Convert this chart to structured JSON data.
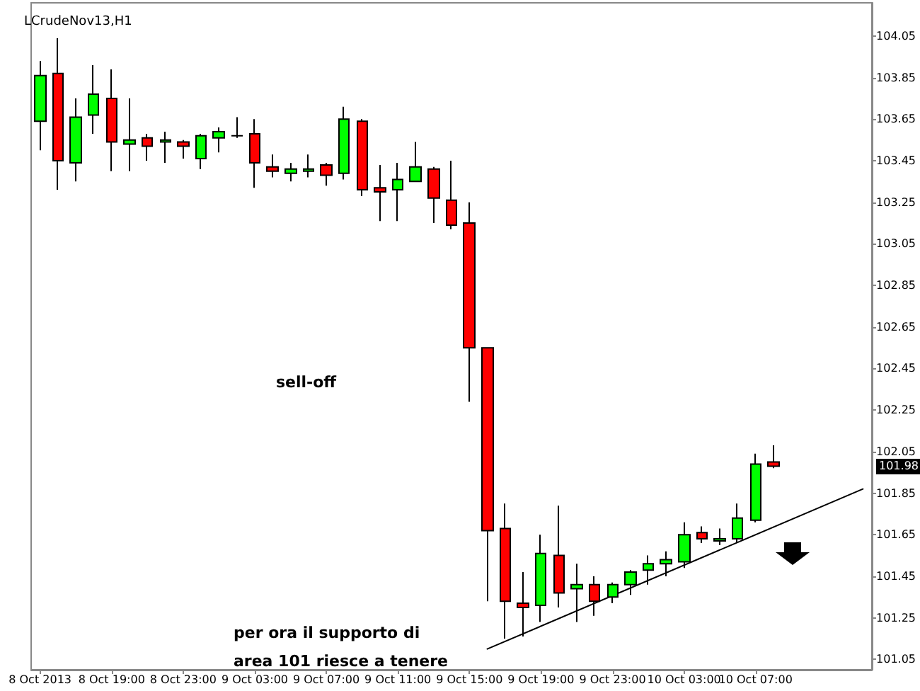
{
  "chart_data": {
    "type": "candlestick",
    "title": "LCrudeNov13,H1",
    "categories": [
      "8 Oct 2013",
      null,
      null,
      null,
      "8 Oct 19:00",
      null,
      null,
      null,
      "8 Oct 23:00",
      null,
      null,
      null,
      "9 Oct 03:00",
      null,
      null,
      null,
      "9 Oct 07:00",
      null,
      null,
      null,
      "9 Oct 11:00",
      null,
      null,
      null,
      "9 Oct 15:00",
      null,
      null,
      null,
      "9 Oct 19:00",
      null,
      null,
      null,
      "9 Oct 23:00",
      null,
      null,
      null,
      "10 Oct 03:00",
      null,
      null,
      null,
      "10 Oct 07:00",
      null,
      null,
      null,
      null,
      null,
      null
    ],
    "series": [
      {
        "ohlc": [
          [
            103.64,
            103.93,
            103.5,
            103.86
          ],
          [
            103.87,
            104.04,
            103.31,
            103.45
          ],
          [
            103.44,
            103.75,
            103.35,
            103.66
          ],
          [
            103.67,
            103.91,
            103.58,
            103.77
          ],
          [
            103.75,
            103.89,
            103.4,
            103.54
          ],
          [
            103.53,
            103.75,
            103.4,
            103.55
          ],
          [
            103.56,
            103.58,
            103.45,
            103.52
          ],
          [
            103.54,
            103.59,
            103.44,
            103.55
          ],
          [
            103.54,
            103.55,
            103.46,
            103.52
          ],
          [
            103.46,
            103.58,
            103.41,
            103.57
          ],
          [
            103.56,
            103.61,
            103.49,
            103.59
          ],
          [
            103.57,
            103.66,
            103.56,
            103.57
          ],
          [
            103.58,
            103.65,
            103.32,
            103.44
          ],
          [
            103.42,
            103.48,
            103.37,
            103.4
          ],
          [
            103.39,
            103.44,
            103.35,
            103.41
          ],
          [
            103.4,
            103.48,
            103.37,
            103.41
          ],
          [
            103.43,
            103.44,
            103.33,
            103.38
          ],
          [
            103.39,
            103.71,
            103.36,
            103.65
          ],
          [
            103.64,
            103.65,
            103.28,
            103.31
          ],
          [
            103.32,
            103.43,
            103.16,
            103.3
          ],
          [
            103.31,
            103.44,
            103.16,
            103.36
          ],
          [
            103.35,
            103.54,
            103.35,
            103.42
          ],
          [
            103.41,
            103.42,
            103.15,
            103.27
          ],
          [
            103.26,
            103.45,
            103.12,
            103.14
          ],
          [
            103.15,
            103.25,
            102.29,
            102.55
          ],
          [
            102.55,
            102.55,
            101.33,
            101.67
          ],
          [
            101.68,
            101.8,
            101.15,
            101.33
          ],
          [
            101.32,
            101.47,
            101.16,
            101.3
          ],
          [
            101.31,
            101.65,
            101.23,
            101.56
          ],
          [
            101.55,
            101.79,
            101.3,
            101.37
          ],
          [
            101.39,
            101.51,
            101.23,
            101.41
          ],
          [
            101.41,
            101.45,
            101.26,
            101.33
          ],
          [
            101.35,
            101.42,
            101.32,
            101.41
          ],
          [
            101.41,
            101.48,
            101.36,
            101.47
          ],
          [
            101.48,
            101.55,
            101.41,
            101.51
          ],
          [
            101.51,
            101.57,
            101.45,
            101.53
          ],
          [
            101.52,
            101.71,
            101.49,
            101.65
          ],
          [
            101.66,
            101.69,
            101.61,
            101.63
          ],
          [
            101.62,
            101.68,
            101.6,
            101.63
          ],
          [
            101.63,
            101.8,
            101.61,
            101.73
          ],
          [
            101.72,
            102.04,
            101.71,
            101.99
          ],
          [
            102.0,
            102.08,
            101.97,
            101.98
          ],
          null,
          null,
          null,
          null,
          null
        ],
        "colors": [
          "#00ff00",
          "#ff0000",
          "#00ff00",
          "#00ff00",
          "#ff0000",
          "#00ff00",
          "#ff0000",
          "#00ff00",
          "#ff0000",
          "#00ff00",
          "#00ff00",
          "#000000",
          "#ff0000",
          "#ff0000",
          "#00ff00",
          "#00ff00",
          "#ff0000",
          "#00ff00",
          "#ff0000",
          "#ff0000",
          "#00ff00",
          "#00ff00",
          "#ff0000",
          "#ff0000",
          "#ff0000",
          "#ff0000",
          "#ff0000",
          "#ff0000",
          "#00ff00",
          "#ff0000",
          "#00ff00",
          "#ff0000",
          "#00ff00",
          "#00ff00",
          "#00ff00",
          "#00ff00",
          "#00ff00",
          "#ff0000",
          "#00ff00",
          "#00ff00",
          "#00ff00",
          "#ff0000",
          null,
          null,
          null,
          null,
          null
        ]
      },
      {
        "type": "line",
        "color": "#000000",
        "line_style": "solid",
        "values": [
          null,
          null,
          null,
          null,
          null,
          null,
          null,
          null,
          null,
          null,
          null,
          null,
          null,
          null,
          null,
          null,
          null,
          null,
          null,
          null,
          null,
          null,
          null,
          null,
          null,
          101.1,
          null,
          null,
          null,
          null,
          null,
          null,
          null,
          null,
          null,
          null,
          null,
          null,
          null,
          null,
          null,
          null,
          null,
          null,
          null,
          null,
          101.87
        ]
      }
    ],
    "ylim": [
      101.0,
      104.21
    ],
    "yticks": [
      101.05,
      101.25,
      101.45,
      101.65,
      101.85,
      102.05,
      102.25,
      102.45,
      102.65,
      102.85,
      103.05,
      103.25,
      103.45,
      103.65,
      103.85,
      104.05
    ],
    "grid": false,
    "annotations": [
      "sell-off",
      "per ora il supporto di\narea 101 riesce a tenere",
      "101.98"
    ]
  }
}
